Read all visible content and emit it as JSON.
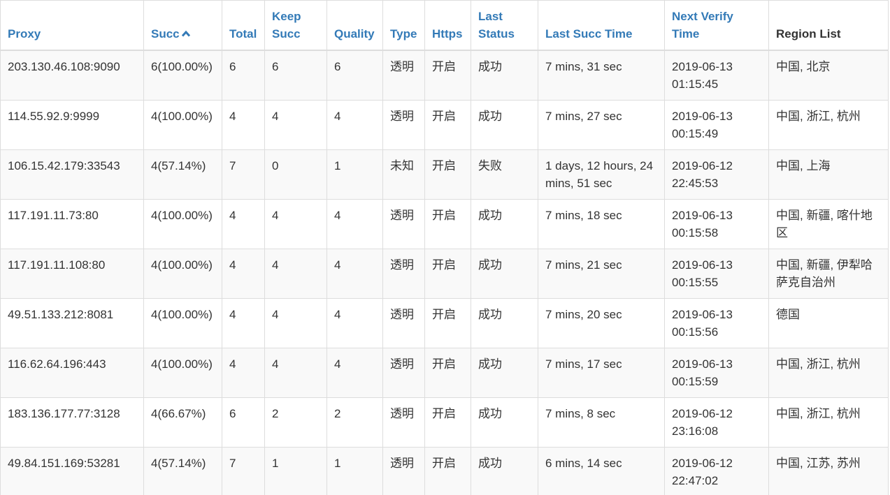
{
  "columns": [
    {
      "label": "Proxy",
      "link": true
    },
    {
      "label": "Succ",
      "link": true,
      "sorted": "asc"
    },
    {
      "label": "Total",
      "link": true
    },
    {
      "label": "Keep Succ",
      "link": true
    },
    {
      "label": "Quality",
      "link": true
    },
    {
      "label": "Type",
      "link": true
    },
    {
      "label": "Https",
      "link": true
    },
    {
      "label": "Last Status",
      "link": true
    },
    {
      "label": "Last Succ Time",
      "link": true
    },
    {
      "label": "Next Verify Time",
      "link": true
    },
    {
      "label": "Region List",
      "link": false
    }
  ],
  "rows": [
    {
      "proxy": "203.130.46.108:9090",
      "succ": "6(100.00%)",
      "total": "6",
      "keep_succ": "6",
      "quality": "6",
      "type": "透明",
      "https": "开启",
      "last_status": "成功",
      "last_succ_time": "7 mins, 31 sec",
      "next_verify_time": "2019-06-13 01:15:45",
      "region": "中国, 北京"
    },
    {
      "proxy": "114.55.92.9:9999",
      "succ": "4(100.00%)",
      "total": "4",
      "keep_succ": "4",
      "quality": "4",
      "type": "透明",
      "https": "开启",
      "last_status": "成功",
      "last_succ_time": "7 mins, 27 sec",
      "next_verify_time": "2019-06-13 00:15:49",
      "region": "中国, 浙江, 杭州"
    },
    {
      "proxy": "106.15.42.179:33543",
      "succ": "4(57.14%)",
      "total": "7",
      "keep_succ": "0",
      "quality": "1",
      "type": "未知",
      "https": "开启",
      "last_status": "失败",
      "last_succ_time": "1 days, 12 hours, 24 mins, 51 sec",
      "next_verify_time": "2019-06-12 22:45:53",
      "region": "中国, 上海"
    },
    {
      "proxy": "117.191.11.73:80",
      "succ": "4(100.00%)",
      "total": "4",
      "keep_succ": "4",
      "quality": "4",
      "type": "透明",
      "https": "开启",
      "last_status": "成功",
      "last_succ_time": "7 mins, 18 sec",
      "next_verify_time": "2019-06-13 00:15:58",
      "region": "中国, 新疆, 喀什地区"
    },
    {
      "proxy": "117.191.11.108:80",
      "succ": "4(100.00%)",
      "total": "4",
      "keep_succ": "4",
      "quality": "4",
      "type": "透明",
      "https": "开启",
      "last_status": "成功",
      "last_succ_time": "7 mins, 21 sec",
      "next_verify_time": "2019-06-13 00:15:55",
      "region": "中国, 新疆, 伊犁哈萨克自治州"
    },
    {
      "proxy": "49.51.133.212:8081",
      "succ": "4(100.00%)",
      "total": "4",
      "keep_succ": "4",
      "quality": "4",
      "type": "透明",
      "https": "开启",
      "last_status": "成功",
      "last_succ_time": "7 mins, 20 sec",
      "next_verify_time": "2019-06-13 00:15:56",
      "region": "德国"
    },
    {
      "proxy": "116.62.64.196:443",
      "succ": "4(100.00%)",
      "total": "4",
      "keep_succ": "4",
      "quality": "4",
      "type": "透明",
      "https": "开启",
      "last_status": "成功",
      "last_succ_time": "7 mins, 17 sec",
      "next_verify_time": "2019-06-13 00:15:59",
      "region": "中国, 浙江, 杭州"
    },
    {
      "proxy": "183.136.177.77:3128",
      "succ": "4(66.67%)",
      "total": "6",
      "keep_succ": "2",
      "quality": "2",
      "type": "透明",
      "https": "开启",
      "last_status": "成功",
      "last_succ_time": "7 mins, 8 sec",
      "next_verify_time": "2019-06-12 23:16:08",
      "region": "中国, 浙江, 杭州"
    },
    {
      "proxy": "49.84.151.169:53281",
      "succ": "4(57.14%)",
      "total": "7",
      "keep_succ": "1",
      "quality": "1",
      "type": "透明",
      "https": "开启",
      "last_status": "成功",
      "last_succ_time": "6 mins, 14 sec",
      "next_verify_time": "2019-06-12 22:47:02",
      "region": "中国, 江苏, 苏州"
    }
  ],
  "colors": {
    "link": "#337ab7",
    "text": "#333333",
    "stripe": "#f9f9f9",
    "border": "#dddddd"
  },
  "icons": {
    "sort": "chevron-up-icon"
  }
}
